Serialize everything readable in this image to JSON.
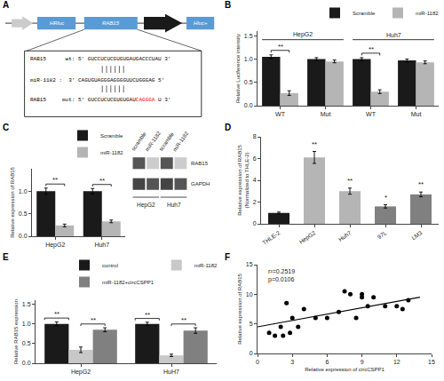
{
  "chart_data": [
    {
      "type": "diagram",
      "title": "A",
      "annotations": [
        {
          "text": "HRluc"
        },
        {
          "text": "RAB15"
        },
        {
          "text": "Hluc+"
        },
        {
          "text": "RAB15      wt: 5' GUCCUCUCGUGUGAUGACCCUAU 3'"
        },
        {
          "text": "miR-1182 :  3' CAGUGUAGGGAGGGGUUCUGGGAG 5'"
        },
        {
          "text": "RAB15     mut: 5' GUCCUCUCGUGUGAU"
        },
        {
          "text": "CAGGGA",
          "color": "red"
        },
        {
          "text": " U 3'"
        }
      ]
    },
    {
      "type": "bar",
      "title": "B",
      "categories": [
        "WT",
        "Mut",
        "WT",
        "Mut"
      ],
      "series": [
        {
          "name": "Scramble",
          "color": "#1a1a1a",
          "values": [
            1.05,
            1.0,
            1.0,
            0.97
          ],
          "errors": [
            0.04,
            0.03,
            0.03,
            0.03
          ]
        },
        {
          "name": "miR-1182",
          "color": "#b5b5b5",
          "values": [
            0.27,
            0.95,
            0.3,
            0.93
          ],
          "errors": [
            0.05,
            0.03,
            0.04,
            0.03
          ]
        }
      ],
      "ylabel": "Relative Luciference intensity",
      "ylim": [
        0,
        1.6
      ],
      "yticks": [
        {
          "value": 0,
          "label": "0.0"
        },
        0.5,
        {
          "value": 1,
          "label": "1.0"
        },
        1.5
      ],
      "annotations": [
        {
          "text": "HepG2",
          "x": [
            0,
            1
          ]
        },
        {
          "text": "Huh7",
          "x": [
            2,
            3
          ]
        },
        {
          "text": "**",
          "x": 0,
          "series": [
            0,
            1
          ]
        },
        {
          "text": "**",
          "x": 2,
          "series": [
            0,
            1
          ]
        }
      ],
      "legend": "upper right",
      "grid": false
    },
    {
      "type": "bar",
      "title": "C",
      "categories": [
        "HepG2",
        "Huh7"
      ],
      "series": [
        {
          "name": "Scramble",
          "color": "#1a1a1a",
          "values": [
            1.0,
            1.0
          ],
          "errors": [
            0.07,
            0.06
          ]
        },
        {
          "name": "miR-1182",
          "color": "#b5b5b5",
          "values": [
            0.24,
            0.33
          ],
          "errors": [
            0.03,
            0.03
          ]
        }
      ],
      "ylabel": "Relative expression of RAB15",
      "ylim": [
        0,
        1.5
      ],
      "yticks": [
        {
          "value": 0,
          "label": "0.0"
        },
        0.5,
        {
          "value": 1,
          "label": "1.0"
        }
      ],
      "annotations": [
        {
          "text": "**",
          "x": 0,
          "series": [
            0,
            1
          ]
        },
        {
          "text": "**",
          "x": 1,
          "series": [
            0,
            1
          ]
        }
      ],
      "legend": "upper right",
      "grid": false
    },
    {
      "type": "blot",
      "categories": [
        "scramble",
        "miR-1182",
        "scramble",
        "miR-1182"
      ],
      "series": [
        {
          "name": "RAB15",
          "colors": [
            "#555555",
            "#cccccc",
            "#555555",
            "#cccccc"
          ]
        },
        {
          "name": "GAPDH",
          "colors": [
            "#444444",
            "#555555",
            "#444444",
            "#555555"
          ]
        }
      ],
      "annotations": [
        {
          "text": "HepG2",
          "x": [
            0,
            1
          ]
        },
        {
          "text": "Huh7",
          "x": [
            2,
            3
          ]
        }
      ]
    },
    {
      "type": "bar",
      "title": "D",
      "categories": [
        "THLE-2",
        "HepG2",
        "Huh7",
        "97L",
        "LM3"
      ],
      "values": [
        1.0,
        6.1,
        3.0,
        1.6,
        2.7
      ],
      "errors": [
        0.08,
        0.55,
        0.28,
        0.15,
        0.22
      ],
      "colors": [
        "#1a1a1a",
        "#b5b5b5",
        "#b5b5b5",
        "#808080",
        "#808080"
      ],
      "ylabel": "Relative expression of RAB15\n(Normalized to THLE-2)",
      "ylim": [
        0,
        8
      ],
      "yticks": [
        0,
        2,
        4,
        6,
        8
      ],
      "annotations": [
        {
          "text": "**",
          "x": 1
        },
        {
          "text": "**",
          "x": 2
        },
        {
          "text": "*",
          "x": 3
        },
        {
          "text": "**",
          "x": 4
        }
      ],
      "grid": false
    },
    {
      "type": "bar",
      "title": "E",
      "categories": [
        "HepG2",
        "HuH7"
      ],
      "series": [
        {
          "name": "control",
          "color": "#1a1a1a",
          "values": [
            1.0,
            1.0
          ],
          "errors": [
            0.05,
            0.04
          ]
        },
        {
          "name": "miR-1182",
          "color": "#c8c8c8",
          "values": [
            0.34,
            0.2
          ],
          "errors": [
            0.07,
            0.03
          ]
        },
        {
          "name": "miR-1182+circCSPP1",
          "color": "#808080",
          "values": [
            0.85,
            0.83
          ],
          "errors": [
            0.05,
            0.07
          ]
        }
      ],
      "ylabel": "Relative RAB15 expression",
      "ylim": [
        0,
        1.6
      ],
      "yticks": [
        {
          "value": 0,
          "label": "0.0"
        },
        0.5,
        {
          "value": 1,
          "label": "1.0"
        },
        1.5
      ],
      "annotations": [
        {
          "text": "**",
          "x": 0,
          "series": [
            0,
            0
          ]
        },
        {
          "text": "**",
          "x": 0,
          "series": [
            1,
            2
          ]
        },
        {
          "text": "**",
          "x": 1,
          "series": [
            0,
            0
          ]
        },
        {
          "text": "**",
          "x": 1,
          "series": [
            1,
            2
          ]
        }
      ],
      "legend": "upper right",
      "grid": false
    },
    {
      "type": "scatter",
      "title": "F",
      "series": [
        {
          "type": "scatter",
          "color": "black",
          "x": [
            1.0,
            1.5,
            2.0,
            2.2,
            2.5,
            2.8,
            3.0,
            3.5,
            4.0,
            5.0,
            6.0,
            7.0,
            7.5,
            8.0,
            8.5,
            9.0,
            9.0,
            9.5,
            10.0,
            11.0,
            12.0,
            12.5,
            13.0
          ],
          "y": [
            3.5,
            3.0,
            4.5,
            3.0,
            8.5,
            3.5,
            6.0,
            4.5,
            7.5,
            6.0,
            6.0,
            7.0,
            10.5,
            10.0,
            6.0,
            9.5,
            10.0,
            8.0,
            9.5,
            8.0,
            8.0,
            7.5,
            9.0
          ]
        },
        {
          "type": "line",
          "color": "black",
          "x": [
            0,
            14
          ],
          "y": [
            4.5,
            9.5
          ]
        }
      ],
      "xlabel": "Relative expression of circCSPP1",
      "ylabel": "Relative expression of RAB15",
      "xlim": [
        0,
        15
      ],
      "ylim": [
        0,
        15
      ],
      "xticks": [
        0,
        3,
        6,
        9,
        12,
        15
      ],
      "yticks": [
        0,
        5,
        10,
        15
      ],
      "annotations": [
        {
          "text": "r²=0.2519"
        },
        {
          "text": "p=0.0106"
        }
      ],
      "grid": false
    }
  ]
}
